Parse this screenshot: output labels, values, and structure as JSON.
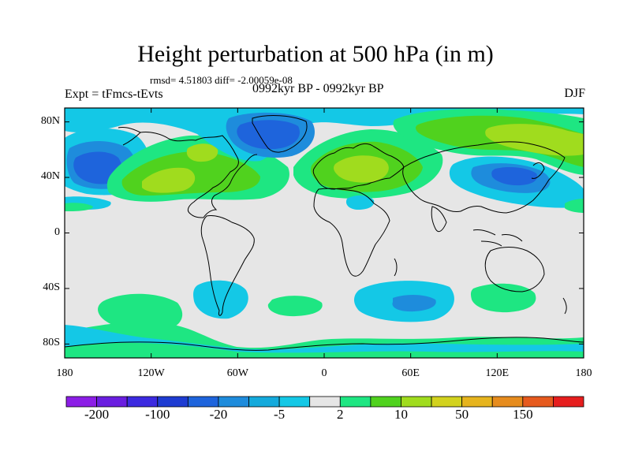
{
  "header": {
    "title": "Height perturbation at 500 hPa (in m)",
    "stats": "rmsd= 4.51803 diff= -2.00059e-08",
    "expt": "Expt = tFmcs-tEvts",
    "period": "0992kyr BP - 0992kyr BP",
    "season": "DJF"
  },
  "axes": {
    "lat_labels": [
      "80N",
      "40N",
      "0",
      "40S",
      "80S"
    ],
    "lat_values": [
      80,
      40,
      0,
      -40,
      -80
    ],
    "lon_labels": [
      "180",
      "120W",
      "60W",
      "0",
      "60E",
      "120E",
      "180"
    ],
    "lon_values": [
      -180,
      -120,
      -60,
      0,
      60,
      120,
      180
    ],
    "lat_range": [
      -90,
      90
    ],
    "lon_range": [
      -180,
      180
    ]
  },
  "colorbar": {
    "colors": [
      "#8c1ee6",
      "#6a1ee0",
      "#3c2ae0",
      "#1e3cd2",
      "#1e64dc",
      "#1e8cdc",
      "#14aadc",
      "#14c8e6",
      "#e6e6e6",
      "#1ee682",
      "#50d21e",
      "#a0dc1e",
      "#d2d21e",
      "#e6b41e",
      "#e68c1e",
      "#e65a1e",
      "#e61e1e"
    ],
    "labels": [
      "-200",
      "-100",
      "-20",
      "-5",
      "2",
      "10",
      "50",
      "150"
    ],
    "label_after_box": [
      1,
      3,
      5,
      7,
      9,
      11,
      13,
      15
    ]
  },
  "colors": {
    "background_field": "#e6e6e6",
    "light_blue": "#14c8e6",
    "mid_blue": "#1e8cdc",
    "dark_blue": "#1e64dc",
    "deep_blue": "#1e3cd2",
    "light_green": "#1ee682",
    "green": "#50d21e",
    "yellow_green": "#a0dc1e"
  }
}
